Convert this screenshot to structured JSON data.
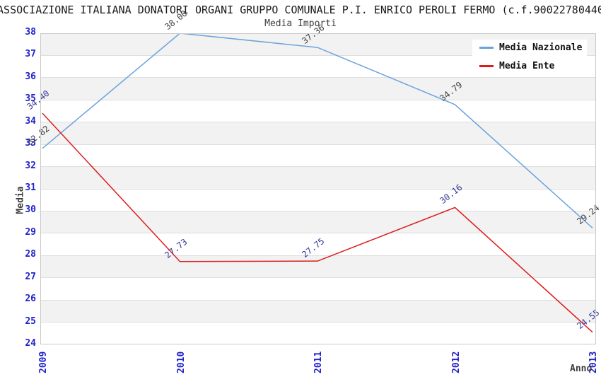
{
  "chart_data": {
    "type": "line",
    "title": "ASSOCIAZIONE ITALIANA DONATORI ORGANI GRUPPO COMUNALE P.I. ENRICO PEROLI FERMO (c.f.90022780440",
    "subtitle": "Media Importi",
    "xlabel": "Anno",
    "ylabel": "Media",
    "x": [
      "2009",
      "2010",
      "2011",
      "2012",
      "2013"
    ],
    "ylim": [
      24,
      38
    ],
    "ytick_step": 1,
    "grid": "horizontal-bands",
    "legend_position": "top-right",
    "colors": {
      "axis_tick": "#2222cc",
      "band": "#f2f2f2",
      "gridline": "#dedede",
      "plot_border": "#c9c9c9",
      "axis_title": "#3d3d3d"
    },
    "series": [
      {
        "name": "Media Nazionale",
        "color": "#6ba3dc",
        "label_color": "#3d3d3d",
        "values": [
          32.82,
          38.0,
          37.36,
          34.79,
          29.24
        ]
      },
      {
        "name": "Media Ente",
        "color": "#dd1c1c",
        "label_color": "#333399",
        "values": [
          34.4,
          27.73,
          27.75,
          30.16,
          24.55
        ]
      }
    ]
  }
}
